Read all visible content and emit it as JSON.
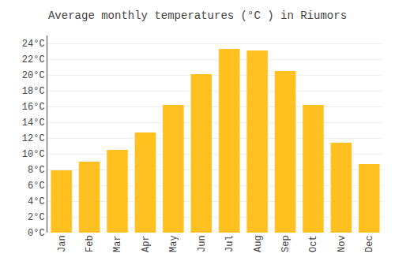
{
  "chart_data": {
    "type": "bar",
    "title": "Average monthly temperatures (°C ) in Riumors",
    "categories": [
      "Jan",
      "Feb",
      "Mar",
      "Apr",
      "May",
      "Jun",
      "Jul",
      "Aug",
      "Sep",
      "Oct",
      "Nov",
      "Dec"
    ],
    "values": [
      7.9,
      9.0,
      10.5,
      12.7,
      16.2,
      20.1,
      23.3,
      23.1,
      20.5,
      16.2,
      11.4,
      8.7
    ],
    "color": "#FFC020",
    "ylim": [
      0,
      25
    ],
    "yticks": [
      {
        "value": 0,
        "label": "0°C"
      },
      {
        "value": 2,
        "label": "2°C"
      },
      {
        "value": 4,
        "label": "4°C"
      },
      {
        "value": 6,
        "label": "6°C"
      },
      {
        "value": 8,
        "label": "8°C"
      },
      {
        "value": 10,
        "label": "10°C"
      },
      {
        "value": 12,
        "label": "12°C"
      },
      {
        "value": 14,
        "label": "14°C"
      },
      {
        "value": 16,
        "label": "16°C"
      },
      {
        "value": 18,
        "label": "18°C"
      },
      {
        "value": 20,
        "label": "20°C"
      },
      {
        "value": 22,
        "label": "22°C"
      },
      {
        "value": 24,
        "label": "24°C"
      }
    ],
    "grid": true
  }
}
